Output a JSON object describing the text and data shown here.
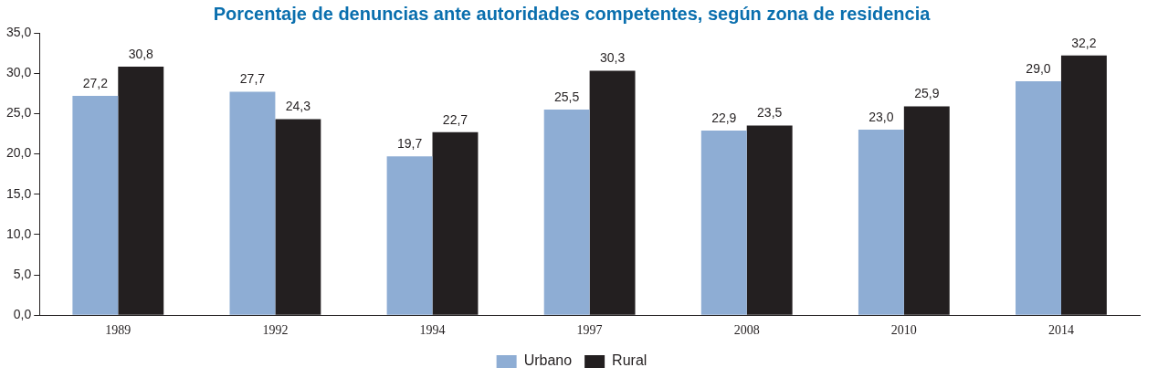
{
  "chart_data": {
    "type": "bar",
    "title": "Porcentaje de denuncias ante autoridades competentes, según zona de residencia",
    "categories": [
      "1989",
      "1992",
      "1994",
      "1997",
      "2008",
      "2010",
      "2014"
    ],
    "series": [
      {
        "name": "Urbano",
        "color": "#8eadd4",
        "values": [
          27.2,
          27.7,
          19.7,
          25.5,
          22.9,
          23.0,
          29.0
        ],
        "value_labels": [
          "27,2",
          "27,7",
          "19,7",
          "25,5",
          "22,9",
          "23,0",
          "29,0"
        ]
      },
      {
        "name": "Rural",
        "color": "#231f20",
        "values": [
          30.8,
          24.3,
          22.7,
          30.3,
          23.5,
          25.9,
          32.2
        ],
        "value_labels": [
          "30,8",
          "24,3",
          "22,7",
          "30,3",
          "23,5",
          "25,9",
          "32,2"
        ]
      }
    ],
    "ylim": [
      0,
      35
    ],
    "yticks": [
      {
        "value": 0,
        "label": "0,0"
      },
      {
        "value": 5,
        "label": "5,0"
      },
      {
        "value": 10,
        "label": "10,0"
      },
      {
        "value": 15,
        "label": "15,0"
      },
      {
        "value": 20,
        "label": "20,0"
      },
      {
        "value": 25,
        "label": "25,0"
      },
      {
        "value": 30,
        "label": "30,0"
      },
      {
        "value": 35,
        "label": "35,0"
      }
    ],
    "grid": false,
    "legend": "bottom"
  }
}
